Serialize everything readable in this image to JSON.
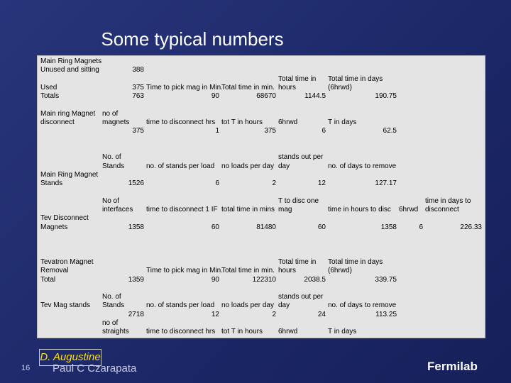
{
  "title": "Some typical numbers",
  "table": {
    "rows": [
      [
        "Main Ring Magnets",
        null,
        null,
        null,
        null,
        null,
        null,
        null
      ],
      [
        "Unused and sitting",
        "388",
        null,
        null,
        null,
        null,
        null,
        null
      ],
      [
        null,
        null,
        null,
        null,
        "Total time in",
        "Total time in days",
        null,
        null
      ],
      [
        "Used",
        "375",
        "Time to pick mag in Min.",
        "Total time in min.",
        "hours",
        "(6hrwd)",
        null,
        null
      ],
      [
        "Totals",
        "763",
        "90",
        "68670",
        "1144.5",
        "190.75",
        null,
        null
      ],
      [
        null,
        null,
        null,
        null,
        null,
        null,
        null,
        null
      ],
      [
        "Main ring Magnet",
        "no of",
        null,
        null,
        null,
        null,
        null,
        null
      ],
      [
        "disconnect",
        "magnets",
        "time to disconnect hrs",
        "tot T in hours",
        "6hrwd",
        "T in days",
        null,
        null
      ],
      [
        null,
        "375",
        "1",
        "375",
        "6",
        "62.5",
        null,
        null
      ],
      [
        null,
        null,
        null,
        null,
        null,
        null,
        null,
        null
      ],
      [
        null,
        null,
        null,
        null,
        null,
        null,
        null,
        null
      ],
      [
        null,
        "No. of",
        null,
        null,
        "stands out per",
        null,
        null,
        null
      ],
      [
        null,
        "Stands",
        "no. of stands per load",
        "no loads per day",
        "day",
        "no. of days to remove",
        null,
        null
      ],
      [
        "Main Ring Magnet",
        null,
        null,
        null,
        null,
        null,
        null,
        null
      ],
      [
        "Stands",
        "1526",
        "6",
        "2",
        "12",
        "127.17",
        null,
        null
      ],
      [
        null,
        null,
        null,
        null,
        null,
        null,
        null,
        null
      ],
      [
        null,
        "No of",
        null,
        null,
        "T to disc one",
        null,
        null,
        "time in days to"
      ],
      [
        null,
        "interfaces",
        "time to disconnect 1 IF",
        "total time in mins",
        "mag",
        "time in hours to disc",
        "6hrwd",
        "disconnect"
      ],
      [
        "Tev Disconnect",
        null,
        null,
        null,
        null,
        null,
        null,
        null
      ],
      [
        "Magnets",
        "1358",
        "60",
        "81480",
        "60",
        "1358",
        "6",
        "226.33"
      ],
      [
        null,
        null,
        null,
        null,
        null,
        null,
        null,
        null
      ],
      [
        null,
        null,
        null,
        null,
        null,
        null,
        null,
        null
      ],
      [
        null,
        null,
        null,
        null,
        null,
        null,
        null,
        null
      ],
      [
        "Tevatron Magnet",
        null,
        null,
        null,
        "Total time in",
        "Total time in days",
        null,
        null
      ],
      [
        "Removal",
        null,
        "Time to pick mag in Min.",
        "Total time in min.",
        "hours",
        "(6hrwd)",
        null,
        null
      ],
      [
        "Total",
        "1359",
        "90",
        "122310",
        "2038.5",
        "339.75",
        null,
        null
      ],
      [
        null,
        null,
        null,
        null,
        null,
        null,
        null,
        null
      ],
      [
        null,
        "No. of",
        null,
        null,
        "stands out per",
        null,
        null,
        null
      ],
      [
        "Tev Mag stands",
        "Stands",
        "no. of stands per load",
        "no loads per day",
        "day",
        "no. of days to remove",
        null,
        null
      ],
      [
        null,
        "2718",
        "12",
        "2",
        "24",
        "113.25",
        null,
        null
      ],
      [
        null,
        "no of",
        null,
        null,
        null,
        null,
        null,
        null
      ],
      [
        null,
        "straights",
        "time to disconnect hrs",
        "tot T in hours",
        "6hrwd",
        "T in days",
        null,
        null
      ]
    ]
  },
  "footer": {
    "page": "16",
    "author_box": "D. Augustine",
    "author": "Paul C Czarapata",
    "logo": "Fermilab"
  }
}
